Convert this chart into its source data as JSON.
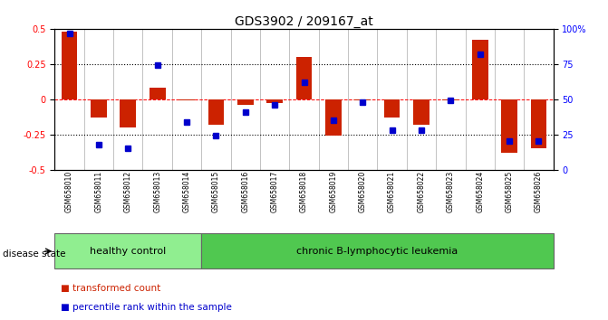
{
  "title": "GDS3902 / 209167_at",
  "samples": [
    "GSM658010",
    "GSM658011",
    "GSM658012",
    "GSM658013",
    "GSM658014",
    "GSM658015",
    "GSM658016",
    "GSM658017",
    "GSM658018",
    "GSM658019",
    "GSM658020",
    "GSM658021",
    "GSM658022",
    "GSM658023",
    "GSM658024",
    "GSM658025",
    "GSM658026"
  ],
  "red_bars": [
    0.48,
    -0.13,
    -0.2,
    0.08,
    -0.01,
    -0.18,
    -0.04,
    -0.03,
    0.3,
    -0.26,
    -0.01,
    -0.13,
    -0.18,
    -0.01,
    0.42,
    -0.38,
    -0.35
  ],
  "blue_dots": [
    0.47,
    -0.32,
    -0.35,
    0.24,
    -0.16,
    -0.26,
    -0.09,
    -0.04,
    0.12,
    -0.15,
    -0.02,
    -0.22,
    -0.22,
    -0.01,
    0.32,
    -0.3,
    -0.3
  ],
  "group_boundary": 5,
  "group1_label": "healthy control",
  "group2_label": "chronic B-lymphocytic leukemia",
  "group1_color": "#90EE90",
  "group2_color": "#50C850",
  "disease_state_label": "disease state",
  "legend_red": "transformed count",
  "legend_blue": "percentile rank within the sample",
  "bar_color": "#CC2200",
  "dot_color": "#0000CC",
  "ylim": [
    -0.5,
    0.5
  ],
  "right_ylim": [
    0,
    100
  ],
  "right_yticks": [
    0,
    25,
    50,
    75,
    100
  ],
  "right_yticklabels": [
    "0",
    "25",
    "50",
    "75",
    "100%"
  ],
  "left_yticks": [
    -0.5,
    -0.25,
    0,
    0.25,
    0.5
  ],
  "bg_color": "#ffffff"
}
